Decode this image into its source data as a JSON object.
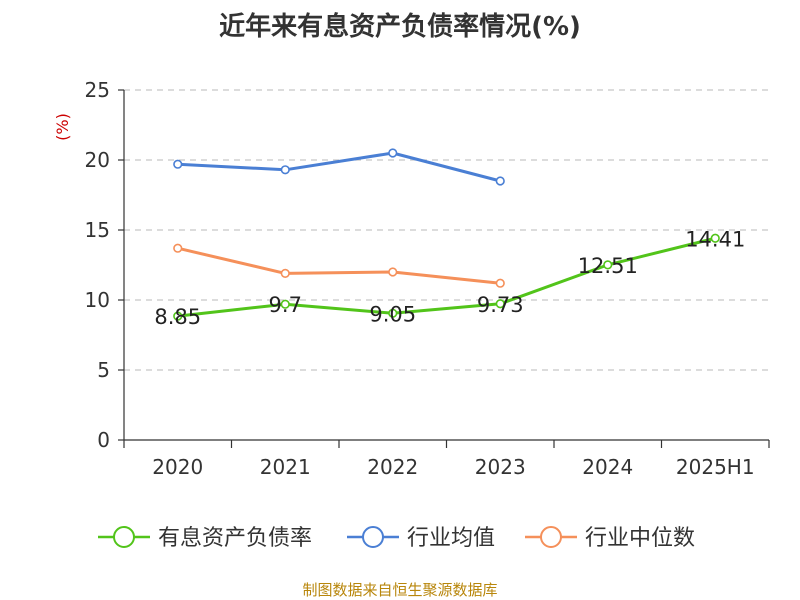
{
  "chart_data": {
    "type": "line",
    "title": "近年来有息资产负债率情况(%)",
    "ylabel": "(%)",
    "ylim": [
      0,
      25
    ],
    "yticks": [
      0,
      5,
      10,
      15,
      20,
      25
    ],
    "categories": [
      "2020",
      "2021",
      "2022",
      "2023",
      "2024",
      "2025H1"
    ],
    "grid": true,
    "legend_position": "bottom",
    "series": [
      {
        "name": "有息资产负债率",
        "color": "#52c41a",
        "values": [
          8.85,
          9.7,
          9.05,
          9.73,
          12.51,
          14.41
        ],
        "labels": [
          "8.85",
          "9.7",
          "9.05",
          "9.73",
          "12.51",
          "14.41"
        ]
      },
      {
        "name": "行业均值",
        "color": "#4a7fd4",
        "values": [
          19.7,
          19.3,
          20.5,
          18.5,
          null,
          null
        ]
      },
      {
        "name": "行业中位数",
        "color": "#f5905a",
        "values": [
          13.7,
          11.9,
          12.0,
          11.2,
          null,
          null
        ]
      }
    ]
  },
  "source": "制图数据来自恒生聚源数据库"
}
